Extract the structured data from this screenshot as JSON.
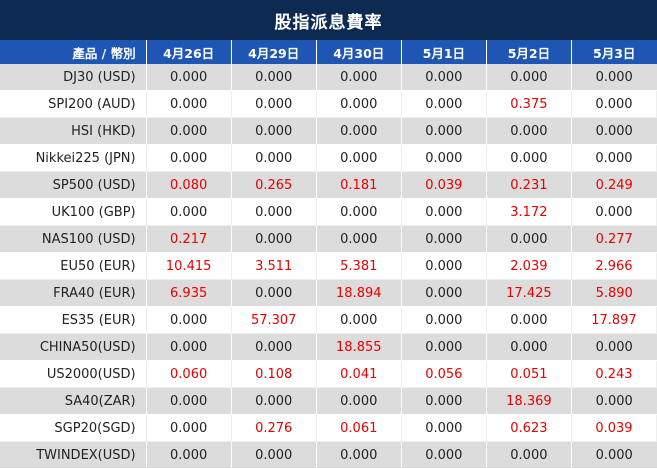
{
  "title": "股指派息費率",
  "header": {
    "product_label": "產品 / 幣別",
    "dates": [
      "4月26日",
      "4月29日",
      "4月30日",
      "5月1日",
      "5月2日",
      "5月3日"
    ]
  },
  "colors": {
    "title_bg": "#0c2a52",
    "header_bg": "#1f56b3",
    "highlight_text": "#e60000",
    "shaded_row": "#dcdcdc"
  },
  "rows": [
    {
      "name": "DJ30 (USD)",
      "values": [
        "0.000",
        "0.000",
        "0.000",
        "0.000",
        "0.000",
        "0.000"
      ]
    },
    {
      "name": "SPI200 (AUD)",
      "values": [
        "0.000",
        "0.000",
        "0.000",
        "0.000",
        "0.375",
        "0.000"
      ]
    },
    {
      "name": "HSI (HKD)",
      "values": [
        "0.000",
        "0.000",
        "0.000",
        "0.000",
        "0.000",
        "0.000"
      ]
    },
    {
      "name": "Nikkei225 (JPN)",
      "values": [
        "0.000",
        "0.000",
        "0.000",
        "0.000",
        "0.000",
        "0.000"
      ]
    },
    {
      "name": "SP500 (USD)",
      "values": [
        "0.080",
        "0.265",
        "0.181",
        "0.039",
        "0.231",
        "0.249"
      ]
    },
    {
      "name": "UK100 (GBP)",
      "values": [
        "0.000",
        "0.000",
        "0.000",
        "0.000",
        "3.172",
        "0.000"
      ]
    },
    {
      "name": "NAS100 (USD)",
      "values": [
        "0.217",
        "0.000",
        "0.000",
        "0.000",
        "0.000",
        "0.277"
      ]
    },
    {
      "name": "EU50 (EUR)",
      "values": [
        "10.415",
        "3.511",
        "5.381",
        "0.000",
        "2.039",
        "2.966"
      ]
    },
    {
      "name": "FRA40 (EUR)",
      "values": [
        "6.935",
        "0.000",
        "18.894",
        "0.000",
        "17.425",
        "5.890"
      ]
    },
    {
      "name": "ES35 (EUR)",
      "values": [
        "0.000",
        "57.307",
        "0.000",
        "0.000",
        "0.000",
        "17.897"
      ]
    },
    {
      "name": "CHINA50(USD)",
      "values": [
        "0.000",
        "0.000",
        "18.855",
        "0.000",
        "0.000",
        "0.000"
      ]
    },
    {
      "name": "US2000(USD)",
      "values": [
        "0.060",
        "0.108",
        "0.041",
        "0.056",
        "0.051",
        "0.243"
      ]
    },
    {
      "name": "SA40(ZAR)",
      "values": [
        "0.000",
        "0.000",
        "0.000",
        "0.000",
        "18.369",
        "0.000"
      ]
    },
    {
      "name": "SGP20(SGD)",
      "values": [
        "0.000",
        "0.276",
        "0.061",
        "0.000",
        "0.623",
        "0.039"
      ]
    },
    {
      "name": "TWINDEX(USD)",
      "values": [
        "0.000",
        "0.000",
        "0.000",
        "0.000",
        "0.000",
        "0.000"
      ]
    }
  ]
}
